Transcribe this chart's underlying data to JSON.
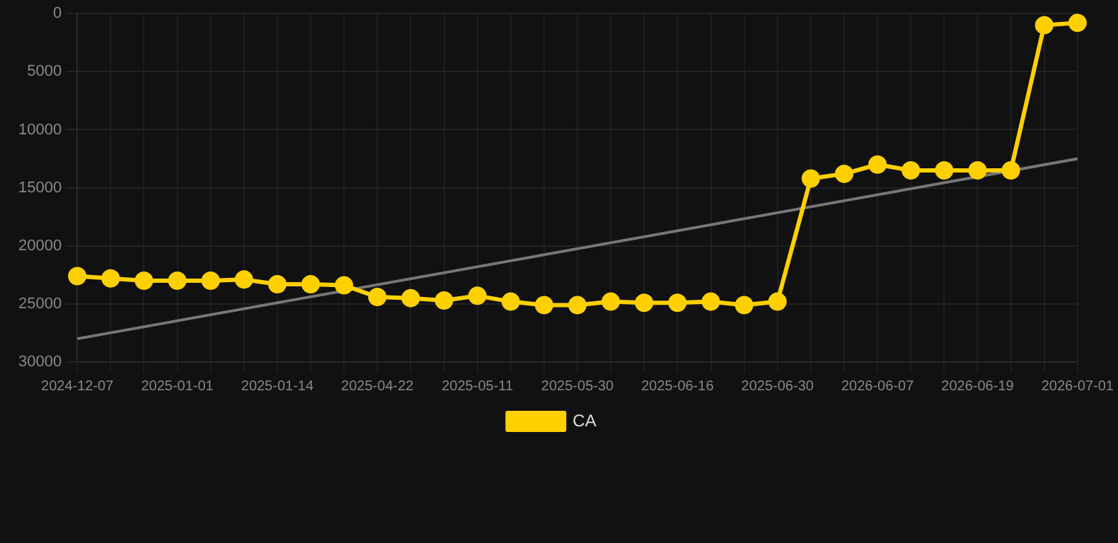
{
  "chart_data": {
    "type": "line",
    "categories": [
      "2024-12-07",
      null,
      null,
      "2025-01-01",
      null,
      null,
      "2025-01-14",
      null,
      null,
      "2025-04-22",
      null,
      null,
      "2025-05-11",
      null,
      null,
      "2025-05-30",
      null,
      null,
      "2025-06-16",
      null,
      null,
      "2025-06-30",
      null,
      null,
      "2026-06-07",
      null,
      null,
      "2026-06-19",
      null,
      null,
      "2026-07-01"
    ],
    "series": [
      {
        "name": "CA",
        "color": "#ffd000",
        "marker": "circle",
        "values": [
          22600,
          22800,
          23000,
          23000,
          23000,
          22900,
          23300,
          23300,
          23400,
          24400,
          24500,
          24700,
          24300,
          24800,
          25100,
          25100,
          24800,
          24900,
          24900,
          24800,
          25100,
          24800,
          14200,
          13800,
          13000,
          13500,
          13500,
          13500,
          13500,
          1000,
          800
        ]
      },
      {
        "type": "line",
        "color": "#777777",
        "marker": "none",
        "values": [
          28000,
          null,
          null,
          null,
          null,
          null,
          null,
          null,
          null,
          null,
          null,
          null,
          null,
          null,
          null,
          null,
          null,
          null,
          null,
          null,
          null,
          null,
          null,
          null,
          null,
          null,
          null,
          null,
          null,
          null,
          12500
        ]
      }
    ],
    "ylim": [
      30000,
      0
    ],
    "yticks": [
      0,
      5000,
      10000,
      15000,
      20000,
      25000,
      30000
    ],
    "grid": true,
    "legend": "bottom"
  }
}
